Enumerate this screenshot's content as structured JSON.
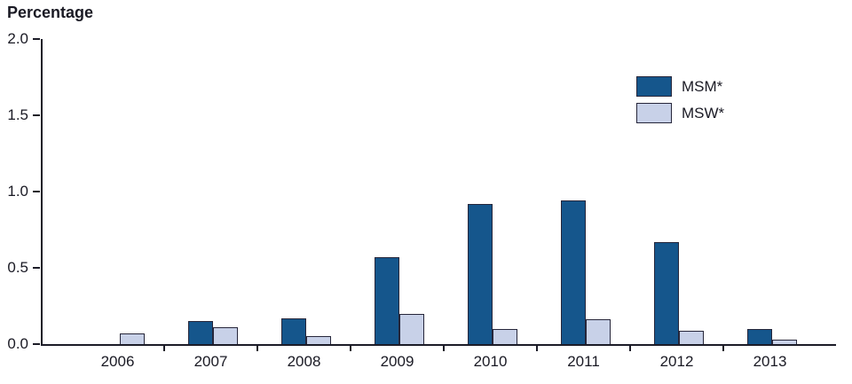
{
  "chart_data": {
    "type": "bar",
    "title": "Percentage",
    "categories": [
      "2006",
      "2007",
      "2008",
      "2009",
      "2010",
      "2011",
      "2012",
      "2013"
    ],
    "series": [
      {
        "name": "MSM*",
        "color": "#15568c",
        "values": [
          0,
          0.15,
          0.17,
          0.57,
          0.92,
          0.94,
          0.67,
          0.1
        ]
      },
      {
        "name": "MSW*",
        "color": "#c8d1e8",
        "values": [
          0.07,
          0.11,
          0.05,
          0.2,
          0.1,
          0.16,
          0.09,
          0.03
        ]
      }
    ],
    "ylim": [
      0,
      2.0
    ],
    "yticks": [
      "0.0",
      "0.5",
      "1.0",
      "1.5",
      "2.0"
    ],
    "xlabel": "",
    "ylabel": "Percentage",
    "grid": false,
    "legend_position": "top-right",
    "axis_color": "#1c1c28",
    "bar_outline_color": "#26263a"
  }
}
